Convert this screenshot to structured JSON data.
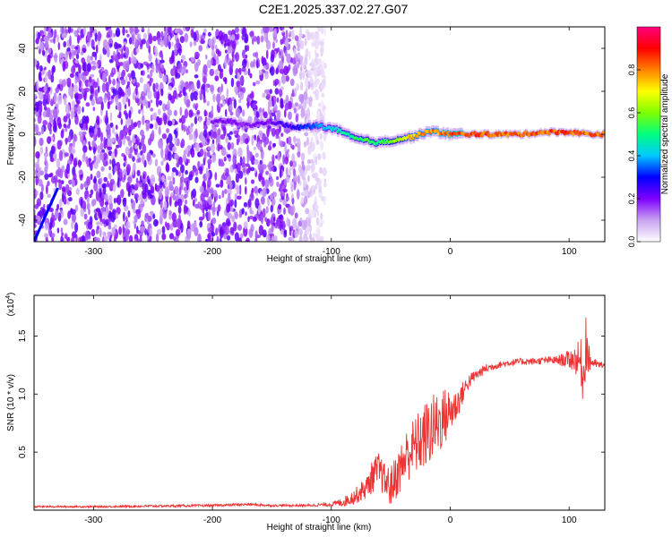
{
  "figure": {
    "title": "C2E1.2025.337.02.27.G07"
  },
  "chart_data": [
    {
      "type": "heatmap",
      "name": "spectrogram",
      "title": "C2E1.2025.337.02.27.G07",
      "xlabel": "Height of straight line (km)",
      "ylabel": "Frequency (Hz)",
      "xlim": [
        -350,
        130
      ],
      "ylim": [
        -50,
        50
      ],
      "x_ticks": [
        -300,
        -200,
        -100,
        0,
        100
      ],
      "y_ticks": [
        -40,
        -20,
        0,
        20,
        40
      ],
      "x_tick_labels": [
        "-300",
        "-200",
        "-100",
        "0",
        "100"
      ],
      "y_tick_labels": [
        "-40",
        "-20",
        "0",
        "20",
        "40"
      ],
      "colorbar": {
        "label": "Normalized spectral amplitude",
        "range": [
          0,
          1
        ],
        "ticks": [
          0.0,
          0.2,
          0.4,
          0.6,
          0.8
        ],
        "tick_labels": [
          "0.0",
          "0.2",
          "0.4",
          "0.6",
          "0.8"
        ],
        "colors": [
          "#ffffff",
          "#c9a2f0",
          "#7f00ff",
          "#0000ff",
          "#00c8ff",
          "#00ff80",
          "#7fff00",
          "#ffff00",
          "#ff8000",
          "#ff0000",
          "#ff0080"
        ]
      },
      "features": {
        "noise_region_x": [
          -350,
          -105
        ],
        "signal_track": {
          "x": [
            -200,
            -185,
            -170,
            -150,
            -130,
            -110,
            -95,
            -80,
            -70,
            -60,
            -50,
            -40,
            -30,
            -20,
            -10,
            0,
            20,
            40,
            60,
            80,
            100,
            120,
            130
          ],
          "y": [
            6,
            6,
            4,
            6,
            3,
            4,
            2,
            -2,
            -3,
            -4,
            -3,
            -2,
            -1,
            1,
            1,
            0,
            0,
            0,
            0,
            1,
            1,
            0,
            0
          ],
          "amp": [
            0.2,
            0.22,
            0.2,
            0.22,
            0.3,
            0.4,
            0.5,
            0.55,
            0.6,
            0.55,
            0.65,
            0.7,
            0.8,
            0.85,
            0.85,
            0.9,
            0.92,
            0.88,
            0.88,
            0.9,
            0.9,
            0.88,
            0.85
          ]
        },
        "diagonal_streak": {
          "x": [
            -350,
            -330
          ],
          "y": [
            -50,
            -25
          ]
        }
      }
    },
    {
      "type": "line",
      "name": "snr",
      "title": "",
      "xlabel": "Height of straight line (km)",
      "ylabel": "SNR (10 * v/v)",
      "scale_label": "(x10",
      "scale_exponent": "4",
      "series_color": "#ee3333",
      "xlim": [
        -350,
        130
      ],
      "ylim": [
        0,
        1.85
      ],
      "x_ticks": [
        -300,
        -200,
        -100,
        0,
        100
      ],
      "y_ticks": [
        0.5,
        1.0,
        1.5
      ],
      "x_tick_labels": [
        "-300",
        "-200",
        "-100",
        "0",
        "100"
      ],
      "y_tick_labels": [
        "0.5",
        "1.0",
        "1.5"
      ],
      "series": [
        {
          "name": "SNR",
          "x": [
            -350,
            -300,
            -250,
            -200,
            -170,
            -150,
            -120,
            -100,
            -90,
            -80,
            -70,
            -65,
            -60,
            -55,
            -50,
            -45,
            -40,
            -35,
            -30,
            -25,
            -20,
            -15,
            -10,
            -5,
            0,
            5,
            10,
            15,
            20,
            30,
            40,
            50,
            60,
            70,
            80,
            90,
            100,
            105,
            110,
            112,
            114,
            116,
            120,
            125,
            130
          ],
          "y": [
            0.03,
            0.03,
            0.035,
            0.04,
            0.05,
            0.04,
            0.04,
            0.05,
            0.07,
            0.12,
            0.2,
            0.3,
            0.35,
            0.25,
            0.2,
            0.3,
            0.4,
            0.5,
            0.55,
            0.6,
            0.65,
            0.7,
            0.75,
            0.8,
            0.85,
            0.9,
            1.0,
            1.1,
            1.15,
            1.22,
            1.25,
            1.27,
            1.28,
            1.28,
            1.29,
            1.29,
            1.3,
            1.3,
            1.28,
            1.1,
            1.5,
            1.3,
            1.27,
            1.25,
            1.25
          ],
          "noise_amp": [
            0.008,
            0.008,
            0.01,
            0.01,
            0.012,
            0.01,
            0.01,
            0.02,
            0.04,
            0.07,
            0.1,
            0.15,
            0.15,
            0.15,
            0.18,
            0.2,
            0.22,
            0.25,
            0.25,
            0.28,
            0.3,
            0.3,
            0.28,
            0.26,
            0.2,
            0.15,
            0.1,
            0.07,
            0.05,
            0.04,
            0.03,
            0.03,
            0.03,
            0.03,
            0.03,
            0.04,
            0.08,
            0.12,
            0.2,
            0.25,
            0.3,
            0.15,
            0.04,
            0.03,
            0.03
          ]
        }
      ]
    }
  ]
}
